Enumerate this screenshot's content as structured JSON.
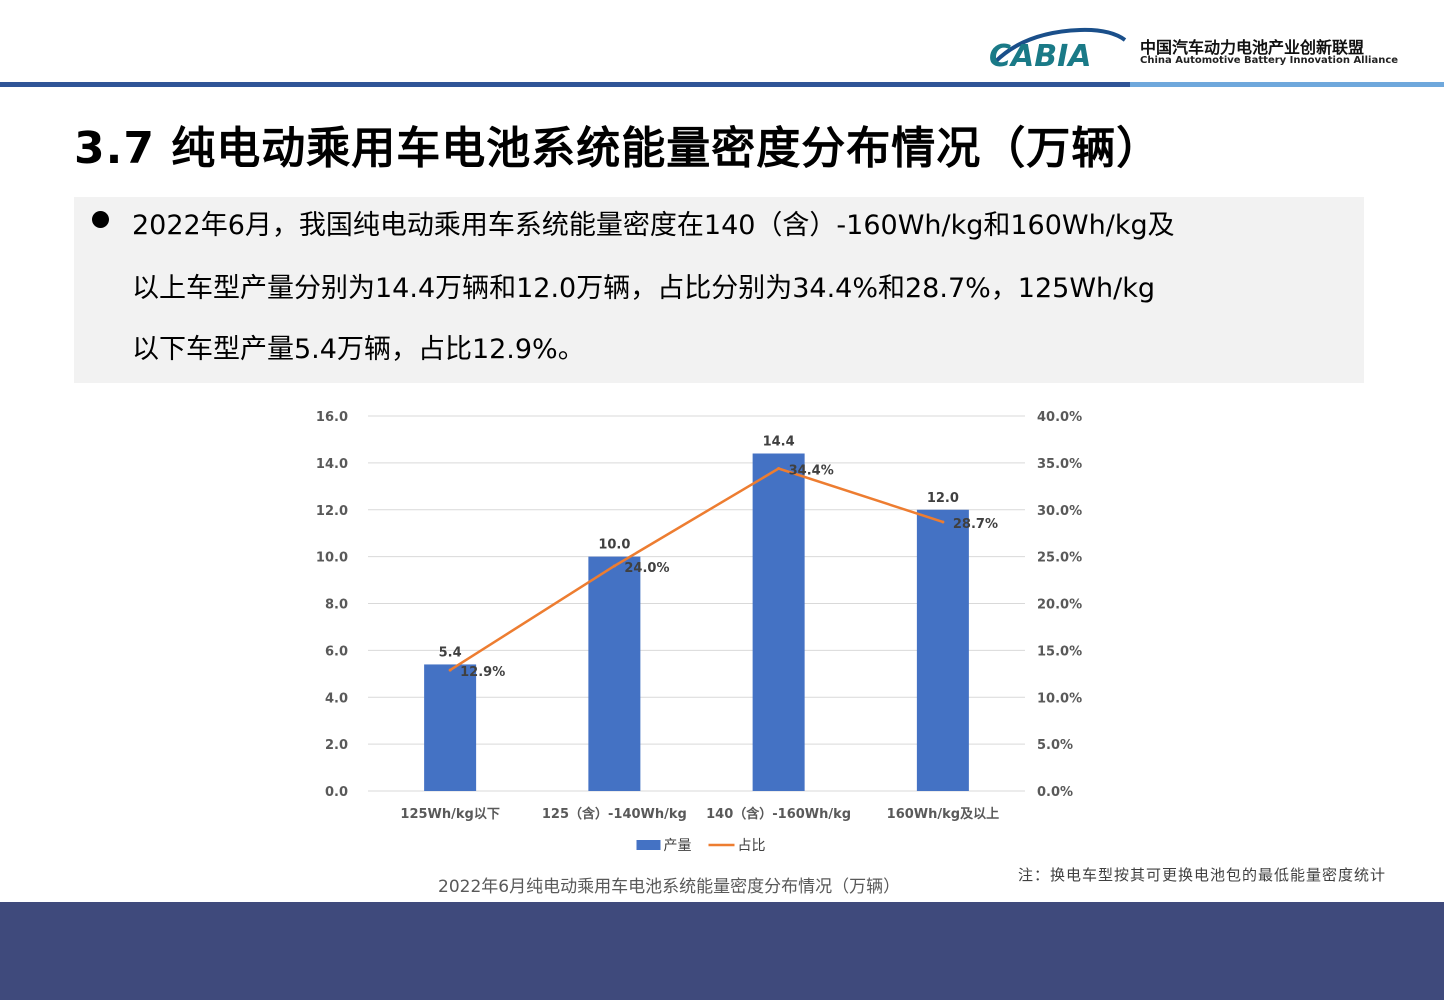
{
  "header": {
    "logo_mark": "CABIA",
    "org_name_cn": "中国汽车动力电池产业创新联盟",
    "org_name_en": "China Automotive Battery Innovation Alliance",
    "brand_color": "#1a7a87",
    "rule_color": "#2f5597"
  },
  "slide": {
    "title": "3.7 纯电动乘用车电池系统能量密度分布情况（万辆）",
    "summary_lines": [
      "2022年6月，我国纯电动乘用车系统能量密度在140（含）-160Wh/kg和160Wh/kg及",
      "以上车型产量分别为14.4万辆和12.0万辆，占比分别为34.4%和28.7%，125Wh/kg",
      "以下车型产量5.4万辆，占比12.9%。"
    ],
    "caption": "2022年6月纯电动乘用车电池系统能量密度分布情况（万辆）",
    "footnote": "注：换电车型按其可更换电池包的最低能量密度统计"
  },
  "chart_data": {
    "type": "bar",
    "categories": [
      "125Wh/kg以下",
      "125（含）-140Wh/kg",
      "140（含）-160Wh/kg",
      "160Wh/kg及以上"
    ],
    "series": [
      {
        "name": "产量",
        "type": "bar",
        "axis": "left",
        "values": [
          5.4,
          10.0,
          14.4,
          12.0
        ],
        "labels": [
          "5.4",
          "10.0",
          "14.4",
          "12.0"
        ],
        "color": "#4472c4"
      },
      {
        "name": "占比",
        "type": "line",
        "axis": "right",
        "values": [
          12.9,
          24.0,
          34.4,
          28.7
        ],
        "labels": [
          "12.9%",
          "24.0%",
          "34.4%",
          "28.7%"
        ],
        "color": "#ed7d31"
      }
    ],
    "ylim": [
      0,
      16
    ],
    "y_ticks": [
      "0.0",
      "2.0",
      "4.0",
      "6.0",
      "8.0",
      "10.0",
      "12.0",
      "14.0",
      "16.0"
    ],
    "y2lim": [
      0,
      40
    ],
    "y2_ticks": [
      "0.0%",
      "5.0%",
      "10.0%",
      "15.0%",
      "20.0%",
      "25.0%",
      "30.0%",
      "35.0%",
      "40.0%"
    ],
    "grid": true,
    "legend": "bottom"
  }
}
